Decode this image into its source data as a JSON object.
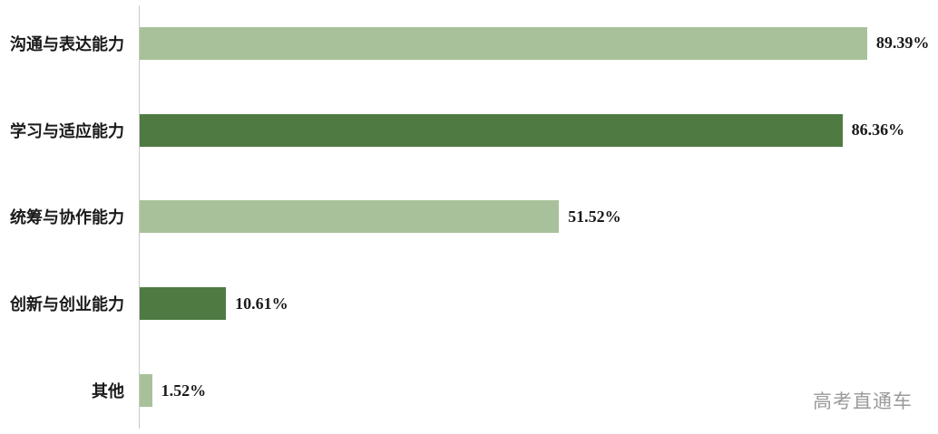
{
  "chart_data": {
    "type": "bar",
    "orientation": "horizontal",
    "title": "",
    "xlabel": "",
    "ylabel": "",
    "categories": [
      "沟通与表达能力",
      "学习与适应能力",
      "统筹与协作能力",
      "创新与创业能力",
      "其他"
    ],
    "values": [
      89.39,
      86.36,
      51.52,
      10.61,
      1.52
    ],
    "value_labels": [
      "89.39%",
      "86.36%",
      "51.52%",
      "10.61%",
      "1.52%"
    ],
    "bar_colors": [
      "#a8c19a",
      "#4f7b43",
      "#a8c19a",
      "#4f7b43",
      "#a8c19a"
    ],
    "xlim": [
      0,
      100
    ],
    "grid": false,
    "legend": false
  },
  "watermark": "高考直通车",
  "colors": {
    "axis": "#c9c9c9",
    "text": "#1a1a1a",
    "watermark": "#9a9a9a",
    "light_green": "#a8c19a",
    "dark_green": "#4f7b43"
  }
}
